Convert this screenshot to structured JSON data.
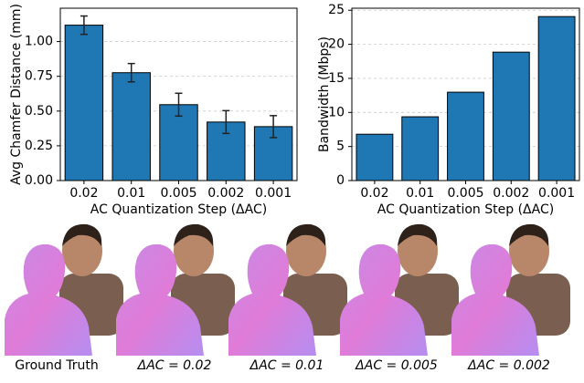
{
  "chart_data": [
    {
      "type": "bar",
      "xlabel": "AC Quantization Step (ΔAC)",
      "ylabel": "Avg Chamfer Distance (mm)",
      "categories": [
        "0.02",
        "0.01",
        "0.005",
        "0.002",
        "0.001"
      ],
      "values": [
        1.118,
        0.776,
        0.546,
        0.421,
        0.388
      ],
      "errors": [
        0.066,
        0.066,
        0.082,
        0.082,
        0.079
      ],
      "color": "#1f77b4",
      "ylim": [
        0,
        1.24
      ],
      "yticks": [
        {
          "value": 0,
          "label": "0.00"
        },
        {
          "value": 0.25,
          "label": "0.25"
        },
        {
          "value": 0.5,
          "label": "0.50"
        },
        {
          "value": 0.75,
          "label": "0.75"
        },
        {
          "value": 1,
          "label": "1.00"
        }
      ],
      "grid": true
    },
    {
      "type": "bar",
      "xlabel": "AC Quantization Step (ΔAC)",
      "ylabel": "Bandwidth (Mbps)",
      "categories": [
        "0.02",
        "0.01",
        "0.005",
        "0.002",
        "0.001"
      ],
      "values": [
        6.8,
        9.36,
        12.97,
        18.85,
        24.07
      ],
      "color": "#1f77b4",
      "ylim": [
        0,
        25.3
      ],
      "yticks": [
        0,
        5,
        10,
        15,
        20,
        25
      ],
      "grid": true
    }
  ],
  "image_captions": [
    "Ground Truth",
    "ΔAC = 0.02",
    "ΔAC = 0.01",
    "ΔAC = 0.005",
    "ΔAC = 0.002"
  ]
}
